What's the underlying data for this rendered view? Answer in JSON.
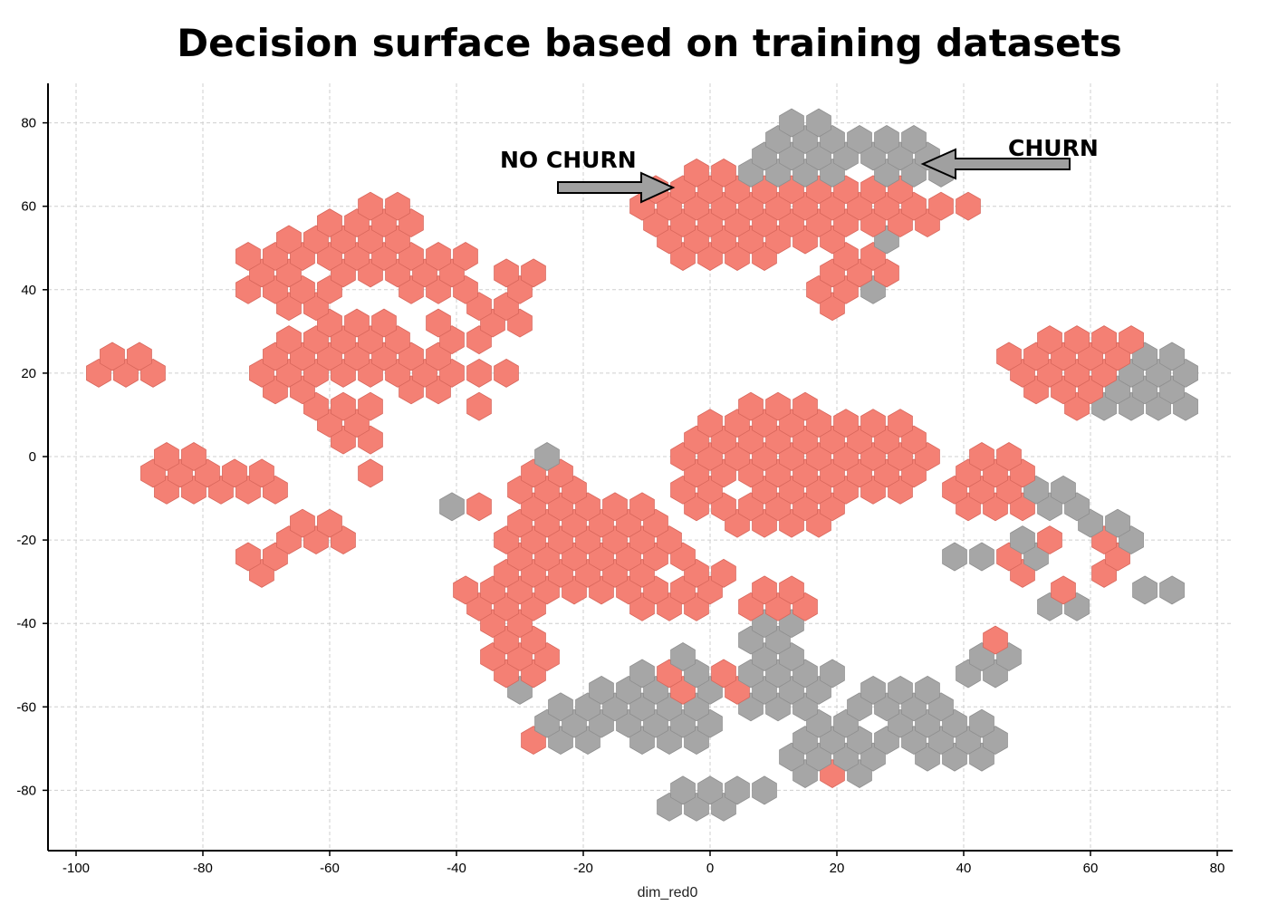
{
  "chart_data": {
    "type": "heatmap",
    "title": "Decision surface based on training datasets",
    "xlabel": "dim_red0",
    "ylabel": "",
    "xlim": [
      -104,
      81
    ],
    "ylim": [
      -96,
      90
    ],
    "xticks": [
      "-100",
      "-80",
      "-60",
      "-40",
      "-20",
      "0",
      "20",
      "40",
      "60",
      "80"
    ],
    "yticks": [
      "80",
      "60",
      "40",
      "20",
      "0",
      "-20",
      "-40",
      "-60",
      "-80"
    ],
    "grid": true,
    "colors": {
      "no_churn": "#f48074",
      "churn": "#a6a6a6"
    },
    "annotations": [
      {
        "text": "NO CHURN",
        "target": [
          -6,
          64
        ]
      },
      {
        "text": "CHURN",
        "target": [
          34,
          70
        ]
      }
    ],
    "regions": {
      "no_churn": [
        [
          -92,
          21,
          5
        ],
        [
          -66,
          44,
          9
        ],
        [
          -54,
          52,
          10
        ],
        [
          -44,
          44,
          7
        ],
        [
          -34,
          34,
          6
        ],
        [
          -56,
          26,
          8
        ],
        [
          -66,
          22,
          7
        ],
        [
          -44,
          20,
          6
        ],
        [
          -58,
          8,
          6
        ],
        [
          -52,
          -4,
          4
        ],
        [
          -84,
          -4,
          6
        ],
        [
          -73,
          -6,
          5
        ],
        [
          -62,
          -18,
          5
        ],
        [
          -70,
          -26,
          4
        ],
        [
          -31,
          43,
          4
        ],
        [
          -40,
          30,
          5
        ],
        [
          -33,
          20,
          4
        ],
        [
          -37,
          12,
          3
        ],
        [
          2,
          58,
          13
        ],
        [
          17,
          60,
          10
        ],
        [
          27,
          61,
          7
        ],
        [
          33,
          58,
          5
        ],
        [
          40,
          60,
          3
        ],
        [
          23,
          43,
          6
        ],
        [
          20,
          39,
          4
        ],
        [
          63,
          20,
          11
        ],
        [
          54,
          21,
          8
        ],
        [
          -20,
          -22,
          14
        ],
        [
          10,
          -2,
          16
        ],
        [
          26,
          0,
          11
        ],
        [
          -6,
          -30,
          9
        ],
        [
          45,
          -6,
          8
        ],
        [
          -32,
          -34,
          7
        ],
        [
          -30,
          -48,
          5
        ],
        [
          -38,
          -12,
          4
        ],
        [
          -26,
          -6,
          6
        ],
        [
          10,
          -34,
          6
        ],
        [
          -3,
          -54,
          4
        ],
        [
          48,
          -26,
          3
        ],
        [
          64,
          -26,
          3
        ],
        [
          55,
          -32,
          3
        ],
        [
          -5,
          -78,
          2
        ],
        [
          20,
          -75,
          2
        ],
        [
          30,
          -66,
          2
        ]
      ],
      "churn": [
        [
          16,
          74,
          8
        ],
        [
          30,
          72,
          6
        ],
        [
          10,
          68,
          4
        ],
        [
          36,
          68,
          4
        ],
        [
          29,
          52,
          3
        ],
        [
          26,
          39,
          3
        ],
        [
          70,
          20,
          6
        ],
        [
          73,
          14,
          4
        ],
        [
          64,
          13,
          4
        ],
        [
          55,
          -10,
          5
        ],
        [
          63,
          -18,
          5
        ],
        [
          52,
          -22,
          4
        ],
        [
          42,
          -24,
          4
        ],
        [
          57,
          -36,
          4
        ],
        [
          70,
          -32,
          3
        ],
        [
          -8,
          -60,
          10
        ],
        [
          12,
          -55,
          8
        ],
        [
          30,
          -62,
          9
        ],
        [
          20,
          -70,
          9
        ],
        [
          40,
          -68,
          7
        ],
        [
          10,
          -44,
          5
        ],
        [
          -2,
          -82,
          6
        ],
        [
          6,
          -80,
          4
        ],
        [
          -22,
          -64,
          5
        ],
        [
          -30,
          -56,
          4
        ],
        [
          -40,
          -12,
          3
        ],
        [
          -40,
          -14,
          2
        ],
        [
          -24,
          0,
          2
        ],
        [
          -4,
          -50,
          3
        ],
        [
          44,
          -50,
          4
        ]
      ],
      "no_churn_patches": [
        [
          -5,
          -78,
          2
        ],
        [
          20,
          -75,
          2
        ],
        [
          30,
          -66,
          2
        ],
        [
          -28,
          -68,
          2
        ],
        [
          -6,
          -54,
          3
        ],
        [
          4,
          -54,
          3
        ],
        [
          22,
          -62,
          2
        ],
        [
          47,
          -44,
          2
        ],
        [
          54,
          -20,
          3
        ],
        [
          61,
          -20,
          3
        ],
        [
          58,
          -26,
          2
        ],
        [
          66,
          -24,
          2
        ],
        [
          60,
          -38,
          2
        ]
      ],
      "holes": [
        [
          -84,
          10,
          6
        ],
        [
          -46,
          52,
          2
        ],
        [
          -54,
          40,
          2
        ],
        [
          -58,
          34,
          2
        ],
        [
          -62,
          44,
          2
        ],
        [
          -50,
          30,
          2
        ],
        [
          -46,
          10,
          2
        ],
        [
          -70,
          18,
          2
        ],
        [
          -66,
          26,
          2
        ],
        [
          -60,
          16,
          2
        ],
        [
          -64,
          4,
          2
        ],
        [
          -52,
          16,
          2
        ],
        [
          -40,
          6,
          3
        ],
        [
          -48,
          -2,
          4
        ],
        [
          -40,
          -22,
          3
        ],
        [
          -30,
          -10,
          2
        ],
        [
          -24,
          -26,
          2
        ],
        [
          -16,
          -22,
          2
        ],
        [
          -6,
          -28,
          2
        ],
        [
          2,
          -24,
          4
        ],
        [
          10,
          -22,
          3
        ],
        [
          16,
          -14,
          2
        ],
        [
          20,
          -30,
          2
        ],
        [
          26,
          -28,
          2
        ],
        [
          4,
          -8,
          2
        ],
        [
          14,
          -28,
          2
        ],
        [
          -12,
          -40,
          2
        ],
        [
          -24,
          -50,
          2
        ],
        [
          6,
          -42,
          2
        ],
        [
          -38,
          32,
          2
        ],
        [
          -26,
          40,
          2
        ],
        [
          10,
          58,
          2
        ],
        [
          -56,
          60,
          2
        ],
        [
          -54,
          26,
          2
        ],
        [
          -46,
          18,
          2
        ],
        [
          36,
          -16,
          2
        ],
        [
          48,
          14,
          2
        ],
        [
          28,
          -36,
          2
        ],
        [
          20,
          -56,
          2
        ],
        [
          -2,
          -70,
          2
        ],
        [
          8,
          -64,
          2
        ],
        [
          24,
          -64,
          2
        ]
      ]
    }
  }
}
